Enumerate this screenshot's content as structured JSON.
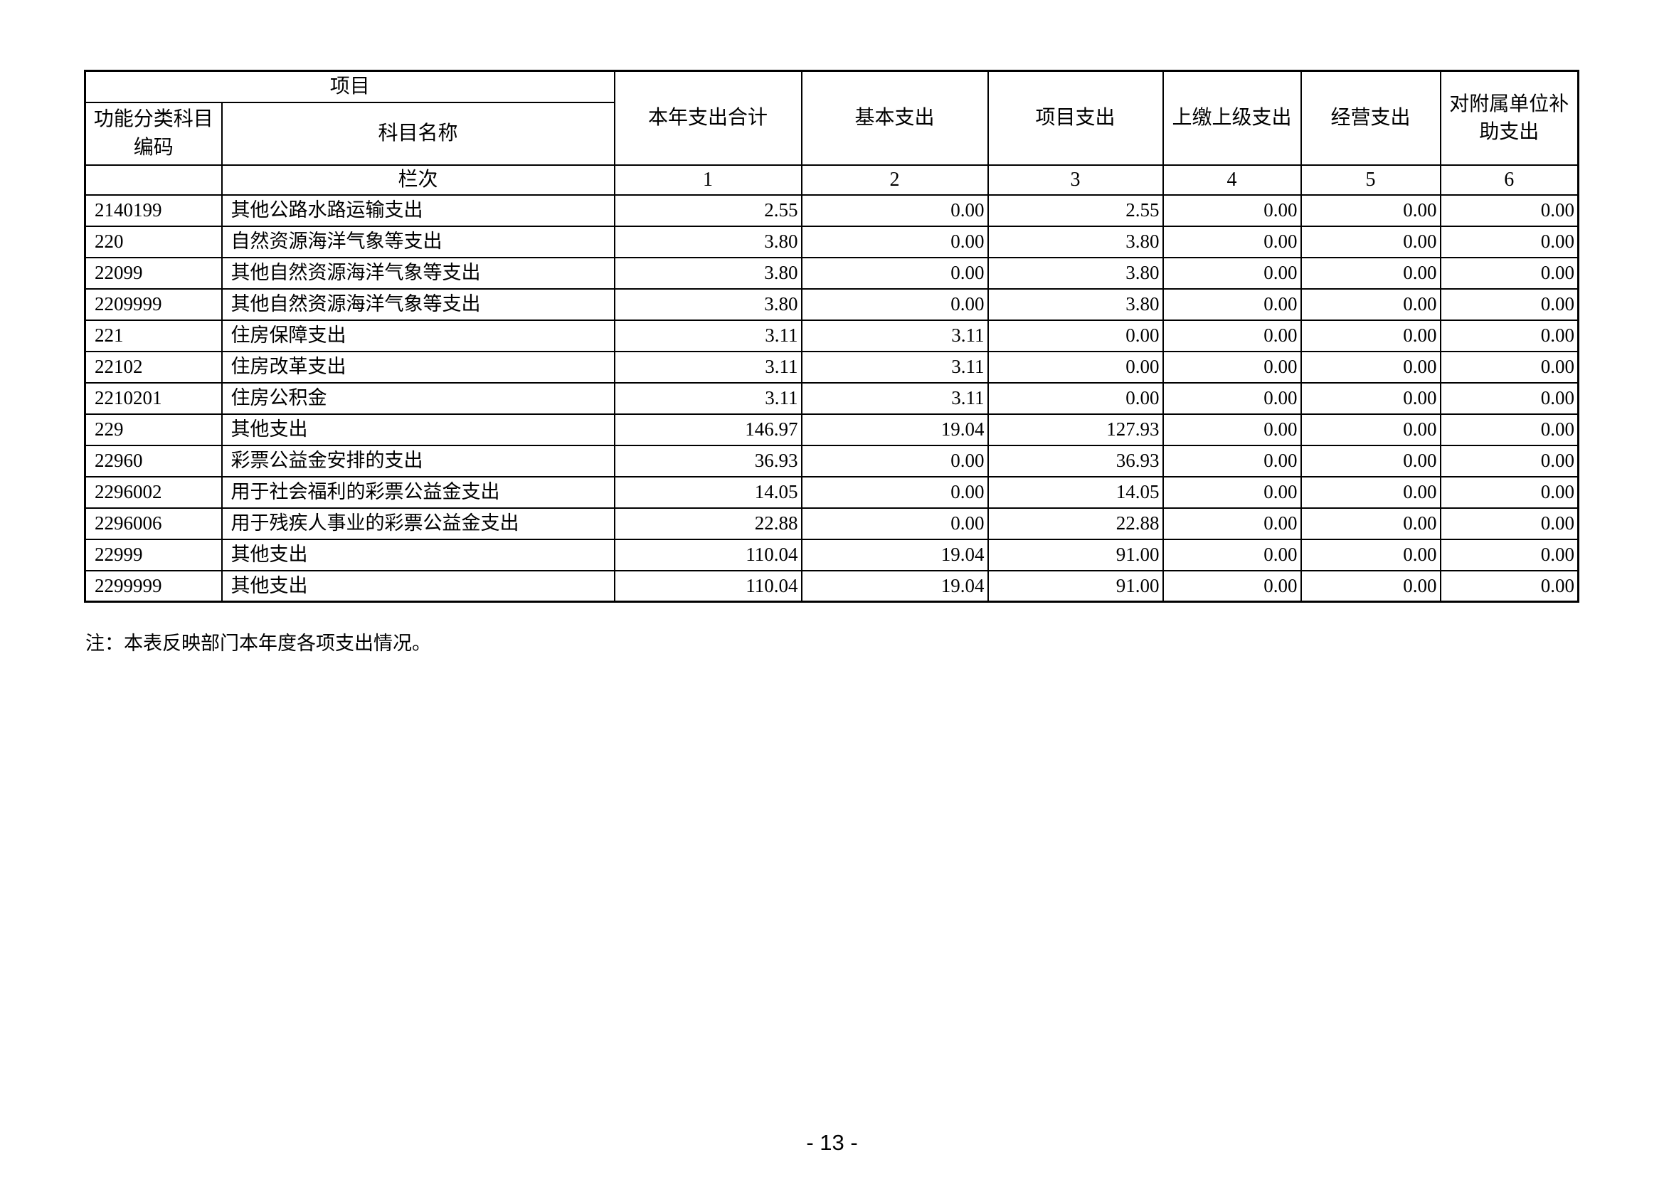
{
  "page": {
    "note": "注：本表反映部门本年度各项支出情况。",
    "page_number": "- 13 -"
  },
  "table": {
    "header": {
      "project": "项目",
      "code": "功能分类科目编码",
      "subject_name": "科目名称",
      "lanci": "栏次",
      "value_columns": [
        {
          "label": "本年支出合计",
          "index": "1"
        },
        {
          "label": "基本支出",
          "index": "2"
        },
        {
          "label": "项目支出",
          "index": "3"
        },
        {
          "label": "上缴上级支出",
          "index": "4"
        },
        {
          "label": "经营支出",
          "index": "5"
        },
        {
          "label": "对附属单位补助支出",
          "index": "6"
        }
      ]
    },
    "rows": [
      {
        "code": "2140199",
        "name": "其他公路水路运输支出",
        "values": [
          "2.55",
          "0.00",
          "2.55",
          "0.00",
          "0.00",
          "0.00"
        ]
      },
      {
        "code": "220",
        "name": "自然资源海洋气象等支出",
        "values": [
          "3.80",
          "0.00",
          "3.80",
          "0.00",
          "0.00",
          "0.00"
        ]
      },
      {
        "code": "22099",
        "name": "其他自然资源海洋气象等支出",
        "values": [
          "3.80",
          "0.00",
          "3.80",
          "0.00",
          "0.00",
          "0.00"
        ]
      },
      {
        "code": "2209999",
        "name": "其他自然资源海洋气象等支出",
        "values": [
          "3.80",
          "0.00",
          "3.80",
          "0.00",
          "0.00",
          "0.00"
        ]
      },
      {
        "code": "221",
        "name": "住房保障支出",
        "values": [
          "3.11",
          "3.11",
          "0.00",
          "0.00",
          "0.00",
          "0.00"
        ]
      },
      {
        "code": "22102",
        "name": "住房改革支出",
        "values": [
          "3.11",
          "3.11",
          "0.00",
          "0.00",
          "0.00",
          "0.00"
        ]
      },
      {
        "code": "2210201",
        "name": "住房公积金",
        "values": [
          "3.11",
          "3.11",
          "0.00",
          "0.00",
          "0.00",
          "0.00"
        ]
      },
      {
        "code": "229",
        "name": "其他支出",
        "values": [
          "146.97",
          "19.04",
          "127.93",
          "0.00",
          "0.00",
          "0.00"
        ]
      },
      {
        "code": "22960",
        "name": "彩票公益金安排的支出",
        "values": [
          "36.93",
          "0.00",
          "36.93",
          "0.00",
          "0.00",
          "0.00"
        ]
      },
      {
        "code": "2296002",
        "name": "用于社会福利的彩票公益金支出",
        "values": [
          "14.05",
          "0.00",
          "14.05",
          "0.00",
          "0.00",
          "0.00"
        ]
      },
      {
        "code": "2296006",
        "name": "用于残疾人事业的彩票公益金支出",
        "values": [
          "22.88",
          "0.00",
          "22.88",
          "0.00",
          "0.00",
          "0.00"
        ]
      },
      {
        "code": "22999",
        "name": "其他支出",
        "values": [
          "110.04",
          "19.04",
          "91.00",
          "0.00",
          "0.00",
          "0.00"
        ]
      },
      {
        "code": "2299999",
        "name": "其他支出",
        "values": [
          "110.04",
          "19.04",
          "91.00",
          "0.00",
          "0.00",
          "0.00"
        ]
      }
    ]
  }
}
